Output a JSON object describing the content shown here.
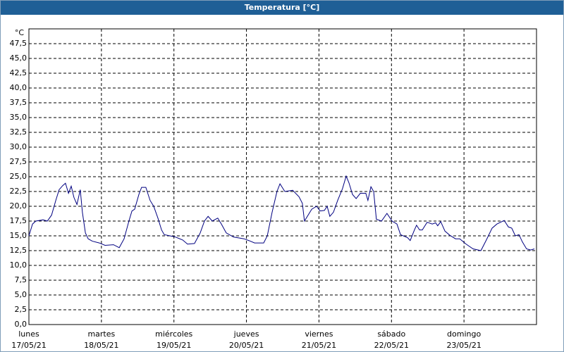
{
  "window_title": "Temperatura [°C]",
  "chart_data": {
    "type": "line",
    "unit_label": "°C",
    "x": [
      0,
      1.2,
      2.3,
      4.7,
      6.1,
      7.5,
      8.9,
      10.0,
      11.2,
      12.1,
      13.1,
      14.0,
      14.9,
      15.9,
      17.0,
      17.7,
      18.7,
      19.6,
      21.0,
      23.3,
      25.2,
      28.0,
      29.9,
      31.5,
      33.1,
      34.1,
      35.0,
      36.4,
      37.3,
      38.7,
      40.1,
      41.3,
      42.7,
      43.9,
      44.8,
      46.7,
      48.5,
      50.9,
      52.5,
      54.8,
      56.7,
      58.1,
      59.3,
      60.7,
      62.5,
      63.7,
      65.3,
      67.7,
      71.2,
      72.8,
      74.7,
      77.7,
      78.9,
      80.5,
      82.1,
      83.1,
      84.7,
      87.3,
      89.4,
      90.5,
      91.2,
      93.6,
      95.2,
      96.4,
      97.8,
      98.7,
      99.6,
      100.8,
      102.2,
      103.8,
      105.0,
      105.9,
      107.1,
      108.3,
      109.7,
      111.5,
      112.2,
      113.2,
      114.1,
      115.0,
      116.7,
      118.5,
      120.2,
      121.8,
      123.0,
      125.3,
      126.2,
      127.6,
      128.3,
      129.3,
      130.2,
      131.8,
      133.5,
      134.6,
      135.3,
      136.3,
      137.7,
      139.3,
      141.2,
      142.6,
      144.7,
      147.0,
      149.6,
      151.4,
      153.3,
      154.9,
      157.3,
      158.7,
      159.8,
      161.0,
      162.2,
      163.3,
      164.7,
      166.1,
      167.3
    ],
    "series": [
      {
        "color": "#000080",
        "values": [
          15.0,
          17.0,
          17.5,
          17.7,
          17.5,
          18.5,
          21.0,
          22.8,
          23.5,
          23.9,
          22.2,
          23.4,
          21.5,
          20.3,
          22.8,
          19.0,
          15.5,
          14.5,
          14.1,
          13.8,
          13.4,
          13.5,
          13.0,
          14.5,
          17.5,
          19.2,
          19.5,
          22.0,
          23.2,
          23.2,
          21.0,
          20.0,
          18.0,
          16.0,
          15.2,
          15.0,
          14.8,
          14.3,
          13.6,
          13.7,
          15.5,
          17.5,
          18.3,
          17.5,
          18.0,
          17.0,
          15.5,
          14.8,
          14.5,
          14.2,
          13.8,
          13.8,
          15.0,
          19.0,
          22.5,
          23.8,
          22.5,
          22.7,
          21.6,
          20.5,
          17.5,
          19.5,
          20.0,
          19.2,
          19.3,
          20.0,
          18.3,
          19.0,
          21.0,
          23.0,
          25.1,
          24.0,
          22.0,
          21.3,
          22.2,
          22.2,
          21.0,
          23.3,
          22.5,
          17.8,
          17.5,
          18.8,
          17.5,
          17.0,
          15.2,
          14.7,
          14.2,
          16.0,
          16.8,
          16.0,
          16.0,
          17.3,
          17.0,
          17.2,
          16.7,
          17.4,
          15.8,
          15.1,
          14.5,
          14.5,
          13.6,
          12.8,
          12.5,
          14.3,
          16.3,
          17.0,
          17.6,
          16.5,
          16.3,
          15.0,
          15.2,
          14.0,
          12.8,
          12.6,
          12.8
        ]
      }
    ],
    "xlim": [
      0,
      168
    ],
    "xticks": [
      {
        "value": 0,
        "label": "lunes"
      },
      {
        "value": 24,
        "label": "martes"
      },
      {
        "value": 48,
        "label": "miércoles"
      },
      {
        "value": 72,
        "label": "jueves"
      },
      {
        "value": 96,
        "label": "viernes"
      },
      {
        "value": 120,
        "label": "sábado"
      },
      {
        "value": 144,
        "label": "domingo"
      }
    ],
    "xtick_dates": [
      "17/05/21",
      "18/05/21",
      "19/05/21",
      "20/05/21",
      "21/05/21",
      "22/05/21",
      "23/05/21"
    ],
    "ylim": [
      0,
      50
    ],
    "yticks": [
      {
        "value": 0,
        "label": "0,0"
      },
      {
        "value": 2.5,
        "label": "2,5"
      },
      {
        "value": 5,
        "label": "5,0"
      },
      {
        "value": 7.5,
        "label": "7,5"
      },
      {
        "value": 10,
        "label": "10,0"
      },
      {
        "value": 12.5,
        "label": "12,5"
      },
      {
        "value": 15,
        "label": "15,0"
      },
      {
        "value": 17.5,
        "label": "17,5"
      },
      {
        "value": 20,
        "label": "20,0"
      },
      {
        "value": 22.5,
        "label": "22,5"
      },
      {
        "value": 25,
        "label": "25,0"
      },
      {
        "value": 27.5,
        "label": "27,5"
      },
      {
        "value": 30,
        "label": "30,0"
      },
      {
        "value": 32.5,
        "label": "32,5"
      },
      {
        "value": 35,
        "label": "35,0"
      },
      {
        "value": 37.5,
        "label": "37,5"
      },
      {
        "value": 40,
        "label": "40,0"
      },
      {
        "value": 42.5,
        "label": "42,5"
      },
      {
        "value": 45,
        "label": "45,0"
      },
      {
        "value": 47.5,
        "label": "47,5"
      }
    ],
    "grid": true
  }
}
